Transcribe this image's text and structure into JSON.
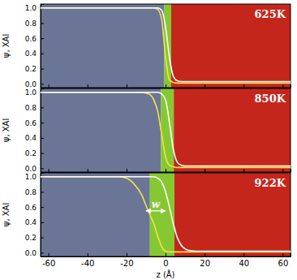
{
  "chart_data": [
    {
      "type": "line",
      "title": "625K",
      "ylabel": "ψ, XAl",
      "x": [
        -64,
        -56,
        -48,
        -40,
        -32,
        -24,
        -20,
        -16,
        -12,
        -10,
        -8,
        -6,
        -4,
        -2,
        0,
        2,
        4,
        6,
        8,
        10,
        12,
        16,
        20,
        24,
        32,
        40,
        48,
        56,
        64
      ],
      "series": [
        {
          "color": "#f2e24a",
          "values": [
            1.0,
            1.0,
            1.0,
            1.0,
            1.0,
            1.0,
            1.0,
            1.0,
            1.0,
            1.0,
            1.0,
            1.0,
            0.98,
            0.85,
            0.35,
            0.05,
            0.02,
            0.01,
            0.01,
            0.01,
            0.01,
            0.01,
            0.01,
            0.01,
            0.01,
            0.01,
            0.01,
            0.01,
            0.01
          ]
        },
        {
          "color": "#ffffff",
          "values": [
            1.0,
            1.0,
            1.0,
            1.0,
            1.0,
            1.0,
            1.0,
            1.0,
            1.0,
            1.0,
            1.0,
            1.0,
            1.0,
            0.97,
            0.75,
            0.35,
            0.1,
            0.04,
            0.03,
            0.03,
            0.03,
            0.03,
            0.03,
            0.03,
            0.03,
            0.03,
            0.03,
            0.03,
            0.03
          ]
        }
      ],
      "xlim": [
        -64,
        64
      ],
      "ylim": [
        -0.05,
        1.05
      ],
      "xticks": [
        -60,
        -40,
        -20,
        0,
        20,
        40,
        60
      ],
      "yticks": [
        {
          "value": 0,
          "label": "0.0"
        },
        {
          "value": 0.2,
          "label": "0.2"
        },
        {
          "value": 0.4,
          "label": "0.4"
        },
        {
          "value": 0.6,
          "label": "0.6"
        },
        {
          "value": 0.8,
          "label": "0.8"
        },
        {
          "value": 1,
          "label": "1.0"
        }
      ],
      "tick_labels": "y"
    },
    {
      "type": "line",
      "title": "850K",
      "ylabel": "ψ, XAl",
      "x": [
        -64,
        -56,
        -48,
        -40,
        -32,
        -24,
        -20,
        -16,
        -12,
        -10,
        -8,
        -6,
        -4,
        -2,
        0,
        2,
        4,
        6,
        8,
        10,
        12,
        16,
        20,
        24,
        32,
        40,
        48,
        56,
        64
      ],
      "series": [
        {
          "color": "#f2e24a",
          "values": [
            1.0,
            1.0,
            1.0,
            1.0,
            1.0,
            1.0,
            1.0,
            1.0,
            1.0,
            0.99,
            0.97,
            0.9,
            0.75,
            0.45,
            0.15,
            0.04,
            0.02,
            0.01,
            0.01,
            0.01,
            0.01,
            0.01,
            0.01,
            0.01,
            0.01,
            0.01,
            0.01,
            0.01,
            0.01
          ]
        },
        {
          "color": "#ffffff",
          "values": [
            1.0,
            1.0,
            1.0,
            1.0,
            1.0,
            1.0,
            1.0,
            1.0,
            1.0,
            1.0,
            1.0,
            1.0,
            1.0,
            0.98,
            0.9,
            0.6,
            0.25,
            0.08,
            0.04,
            0.03,
            0.03,
            0.03,
            0.03,
            0.03,
            0.03,
            0.03,
            0.03,
            0.03,
            0.03
          ]
        }
      ],
      "xlim": [
        -64,
        64
      ],
      "ylim": [
        -0.05,
        1.05
      ],
      "xticks": [
        -60,
        -40,
        -20,
        0,
        20,
        40,
        60
      ],
      "yticks": [
        {
          "value": 0,
          "label": "0.0"
        },
        {
          "value": 0.2,
          "label": "0.2"
        },
        {
          "value": 0.4,
          "label": "0.4"
        },
        {
          "value": 0.6,
          "label": "0.6"
        },
        {
          "value": 0.8,
          "label": "0.8"
        },
        {
          "value": 1,
          "label": "1.0"
        }
      ],
      "tick_labels": "y"
    },
    {
      "type": "line",
      "title": "922K",
      "ylabel": "ψ, XAl",
      "xlabel": "z (Å)",
      "x": [
        -64,
        -56,
        -48,
        -40,
        -32,
        -24,
        -20,
        -16,
        -12,
        -10,
        -8,
        -6,
        -4,
        -2,
        0,
        2,
        4,
        6,
        8,
        10,
        12,
        16,
        20,
        24,
        32,
        40,
        48,
        56,
        64
      ],
      "series": [
        {
          "color": "#f2e24a",
          "values": [
            1.0,
            1.0,
            1.0,
            1.0,
            1.0,
            1.0,
            0.98,
            0.9,
            0.75,
            0.62,
            0.5,
            0.38,
            0.22,
            0.08,
            0.02,
            0.01,
            0.01,
            0.01,
            0.01,
            0.01,
            0.01,
            0.01,
            0.01,
            0.01,
            0.01,
            0.01,
            0.01,
            0.01,
            0.01
          ]
        },
        {
          "color": "#ffffff",
          "values": [
            1.0,
            1.0,
            1.0,
            1.0,
            1.0,
            1.0,
            1.0,
            1.0,
            1.0,
            1.0,
            1.0,
            1.0,
            0.98,
            0.93,
            0.8,
            0.6,
            0.38,
            0.2,
            0.1,
            0.05,
            0.03,
            0.02,
            0.02,
            0.02,
            0.02,
            0.02,
            0.02,
            0.02,
            0.02
          ]
        }
      ],
      "annotations": [
        {
          "text": "w",
          "x": [
            -10,
            0
          ],
          "y": 0.55
        }
      ],
      "xlim": [
        -64,
        64
      ],
      "ylim": [
        -0.05,
        1.05
      ],
      "xticks": [
        -60,
        -40,
        -20,
        0,
        20,
        40,
        60
      ],
      "yticks": [
        {
          "value": 0,
          "label": "0.0"
        },
        {
          "value": 0.2,
          "label": "0.2"
        },
        {
          "value": 0.4,
          "label": "0.4"
        },
        {
          "value": 0.6,
          "label": "0.6"
        },
        {
          "value": 0.8,
          "label": "0.8"
        },
        {
          "value": 1,
          "label": "1.0"
        }
      ]
    }
  ]
}
